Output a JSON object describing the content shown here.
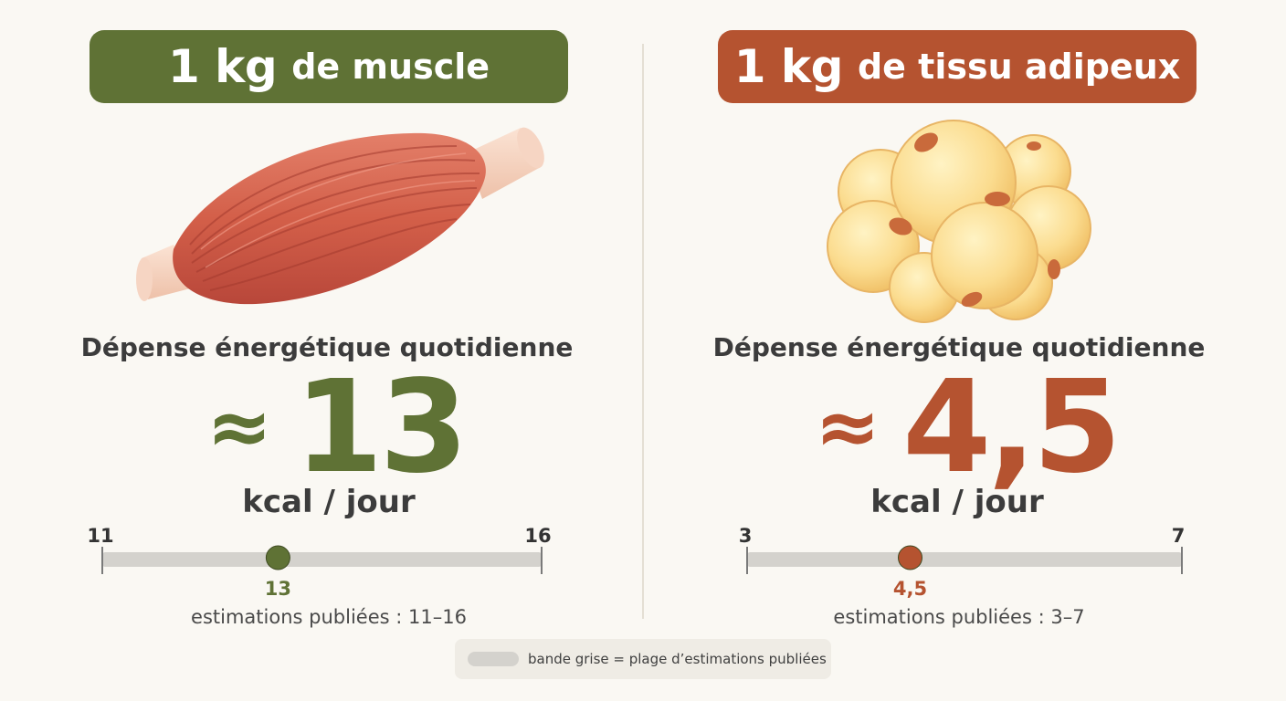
{
  "left": {
    "title_bold": "1 kg",
    "title_rest": "de muscle",
    "metric_label": "Dépense énergétique quotidienne",
    "approx_symbol": "≈",
    "value": "13",
    "unit": "kcal / jour",
    "range_note": "estimations publiées : 11–16",
    "accent_color": "#5f7235",
    "range": {
      "min": 11,
      "max": 16,
      "point": 13,
      "min_label": "11",
      "max_label": "16",
      "point_label": "13"
    },
    "illustration": "muscle-icon"
  },
  "right": {
    "title_bold": "1 kg",
    "title_rest": "de tissu adipeux",
    "metric_label": "Dépense énergétique quotidienne",
    "approx_symbol": "≈",
    "value": "4,5",
    "unit": "kcal / jour",
    "range_note": "estimations publiées : 3–7",
    "accent_color": "#b55330",
    "range": {
      "min": 3,
      "max": 7,
      "point": 4.5,
      "min_label": "3",
      "max_label": "7",
      "point_label": "4,5"
    },
    "illustration": "fat-cells-icon"
  },
  "legend": {
    "text": "bande grise = plage d’estimations publiées",
    "swatch_color": "#d4d2cd"
  }
}
